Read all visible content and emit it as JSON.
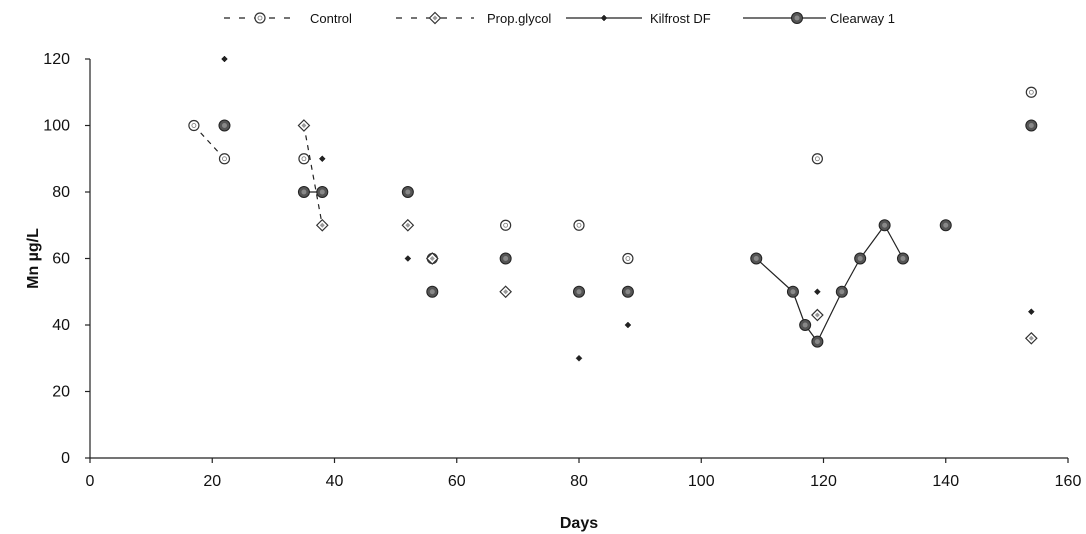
{
  "chart_data": {
    "type": "scatter",
    "xlabel": "Days",
    "ylabel": "Mn µg/L",
    "xlim": [
      0,
      160
    ],
    "ylim": [
      0,
      120
    ],
    "x_ticks": [
      0,
      20,
      40,
      60,
      80,
      100,
      120,
      140,
      160
    ],
    "y_ticks": [
      0,
      20,
      40,
      60,
      80,
      100,
      120
    ],
    "grid": false,
    "legend_position": "top",
    "series": [
      {
        "name": "Control",
        "marker": "open-circle",
        "line": "dashed",
        "color": "#333333",
        "points": [
          [
            17,
            100
          ],
          [
            22,
            90
          ],
          [
            35,
            90
          ],
          [
            56,
            60
          ],
          [
            68,
            70
          ],
          [
            80,
            70
          ],
          [
            88,
            60
          ],
          [
            119,
            90
          ],
          [
            154,
            110
          ]
        ],
        "connect_segments": [
          [
            0,
            1
          ]
        ]
      },
      {
        "name": "Prop.glycol",
        "marker": "open-diamond",
        "line": "dashed",
        "color": "#333333",
        "points": [
          [
            35,
            100
          ],
          [
            38,
            70
          ],
          [
            52,
            70
          ],
          [
            56,
            60
          ],
          [
            68,
            50
          ],
          [
            119,
            43
          ],
          [
            154,
            36
          ]
        ],
        "connect_segments": [
          [
            0,
            1
          ]
        ]
      },
      {
        "name": "Kilfrost DF",
        "marker": "small-diamond",
        "line": "solid",
        "color": "#222222",
        "points": [
          [
            22,
            120
          ],
          [
            38,
            90
          ],
          [
            52,
            60
          ],
          [
            80,
            30
          ],
          [
            88,
            40
          ],
          [
            119,
            50
          ],
          [
            154,
            44
          ]
        ],
        "connect_segments": []
      },
      {
        "name": "Clearway 1",
        "marker": "filled-circle",
        "line": "solid",
        "color": "#222222",
        "points": [
          [
            22,
            100
          ],
          [
            35,
            80
          ],
          [
            38,
            80
          ],
          [
            52,
            80
          ],
          [
            56,
            50
          ],
          [
            68,
            60
          ],
          [
            80,
            50
          ],
          [
            88,
            50
          ],
          [
            109,
            60
          ],
          [
            115,
            50
          ],
          [
            117,
            40
          ],
          [
            119,
            35
          ],
          [
            123,
            50
          ],
          [
            126,
            60
          ],
          [
            130,
            70
          ],
          [
            133,
            60
          ],
          [
            140,
            70
          ],
          [
            154,
            100
          ]
        ],
        "connect_segments": [
          [
            1,
            2
          ],
          [
            8,
            9
          ],
          [
            9,
            10
          ],
          [
            10,
            11
          ],
          [
            11,
            12
          ],
          [
            12,
            13
          ],
          [
            13,
            14
          ],
          [
            14,
            15
          ]
        ]
      }
    ]
  }
}
